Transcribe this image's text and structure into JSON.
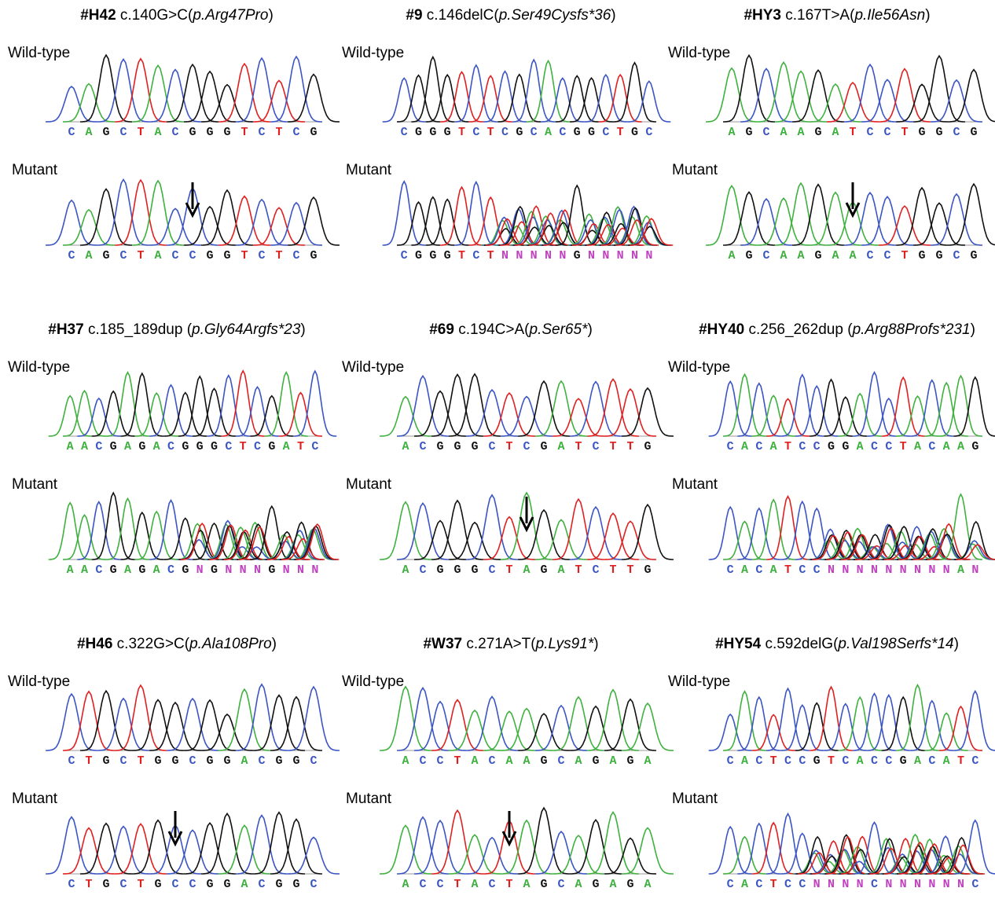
{
  "panels": [
    {
      "id": "#H42",
      "change": " c.140G>C(",
      "protein": "p.Arg47Pro",
      "close": ")",
      "wildtype": {
        "label": "Wild-type",
        "seq": [
          "C",
          "A",
          "G",
          "C",
          "T",
          "A",
          "C",
          "G",
          "G",
          "G",
          "T",
          "C",
          "T",
          "C",
          "G"
        ]
      },
      "mutant": {
        "label": "Mutant",
        "seq": [
          "C",
          "A",
          "G",
          "C",
          "T",
          "A",
          "C",
          "C",
          "G",
          "G",
          "T",
          "C",
          "T",
          "C",
          "G"
        ]
      }
    },
    {
      "id": "#9",
      "change": " c.146delC(",
      "protein": "p.Ser49Cysfs*36",
      "close": ")",
      "wildtype": {
        "label": "Wild-type",
        "seq": [
          "C",
          "G",
          "G",
          "G",
          "T",
          "C",
          "T",
          "C",
          "G",
          "C",
          "A",
          "C",
          "G",
          "G",
          "C",
          "T",
          "G",
          "C"
        ]
      },
      "mutant": {
        "label": "Mutant",
        "seq": [
          "C",
          "G",
          "G",
          "G",
          "T",
          "C",
          "T",
          "N",
          "N",
          "N",
          "N",
          "N",
          "G",
          "N",
          "N",
          "N",
          "N",
          "N"
        ]
      }
    },
    {
      "id": "#HY3",
      "change": " c.167T>A(",
      "protein": "p.Ile56Asn",
      "close": ")",
      "wildtype": {
        "label": "Wild-type",
        "seq": [
          "A",
          "G",
          "C",
          "A",
          "A",
          "G",
          "A",
          "T",
          "C",
          "C",
          "T",
          "G",
          "G",
          "C",
          "G"
        ]
      },
      "mutant": {
        "label": "Mutant",
        "seq": [
          "A",
          "G",
          "C",
          "A",
          "A",
          "G",
          "A",
          "A",
          "C",
          "C",
          "T",
          "G",
          "G",
          "C",
          "G"
        ]
      }
    },
    {
      "id": "#H37",
      "change": " c.185_189dup (",
      "protein": "p.Gly64Argfs*23",
      "close": ")",
      "wildtype": {
        "label": "Wild-type",
        "seq": [
          "A",
          "A",
          "C",
          "G",
          "A",
          "G",
          "A",
          "C",
          "G",
          "G",
          "G",
          "C",
          "T",
          "C",
          "G",
          "A",
          "T",
          "C"
        ]
      },
      "mutant": {
        "label": "Mutant",
        "seq": [
          "A",
          "A",
          "C",
          "G",
          "A",
          "G",
          "A",
          "C",
          "G",
          "N",
          "G",
          "N",
          "N",
          "N",
          "G",
          "N",
          "N",
          "N"
        ]
      }
    },
    {
      "id": "#69",
      "change": " c.194C>A(",
      "protein": "p.Ser65*",
      "close": ")",
      "wildtype": {
        "label": "Wild-type",
        "seq": [
          "A",
          "C",
          "G",
          "G",
          "G",
          "C",
          "T",
          "C",
          "G",
          "A",
          "T",
          "C",
          "T",
          "T",
          "G"
        ]
      },
      "mutant": {
        "label": "Mutant",
        "seq": [
          "A",
          "C",
          "G",
          "G",
          "G",
          "C",
          "T",
          "A",
          "G",
          "A",
          "T",
          "C",
          "T",
          "T",
          "G"
        ]
      }
    },
    {
      "id": "#HY40",
      "change": " c.256_262dup (",
      "protein": "p.Arg88Profs*231",
      "close": ")",
      "wildtype": {
        "label": "Wild-type",
        "seq": [
          "C",
          "A",
          "C",
          "A",
          "T",
          "C",
          "C",
          "G",
          "G",
          "A",
          "C",
          "C",
          "T",
          "A",
          "C",
          "A",
          "A",
          "G"
        ]
      },
      "mutant": {
        "label": "Mutant",
        "seq": [
          "C",
          "A",
          "C",
          "A",
          "T",
          "C",
          "C",
          "N",
          "N",
          "N",
          "N",
          "N",
          "N",
          "N",
          "N",
          "N",
          "A",
          "N"
        ]
      }
    },
    {
      "id": "#H46",
      "change": " c.322G>C(",
      "protein": "p.Ala108Pro",
      "close": ")",
      "wildtype": {
        "label": "Wild-type",
        "seq": [
          "C",
          "T",
          "G",
          "C",
          "T",
          "G",
          "G",
          "C",
          "G",
          "G",
          "A",
          "C",
          "G",
          "G",
          "C"
        ]
      },
      "mutant": {
        "label": "Mutant",
        "seq": [
          "C",
          "T",
          "G",
          "C",
          "T",
          "G",
          "C",
          "C",
          "G",
          "G",
          "A",
          "C",
          "G",
          "G",
          "C"
        ]
      }
    },
    {
      "id": "#W37",
      "change": " c.271A>T(",
      "protein": "p.Lys91*",
      "close": ")",
      "wildtype": {
        "label": "Wild-type",
        "seq": [
          "A",
          "C",
          "C",
          "T",
          "A",
          "C",
          "A",
          "A",
          "G",
          "C",
          "A",
          "G",
          "A",
          "G",
          "A"
        ]
      },
      "mutant": {
        "label": "Mutant",
        "seq": [
          "A",
          "C",
          "C",
          "T",
          "A",
          "C",
          "T",
          "A",
          "G",
          "C",
          "A",
          "G",
          "A",
          "G",
          "A"
        ]
      }
    },
    {
      "id": "#HY54",
      "change": " c.592delG(",
      "protein": "p.Val198Serfs*14",
      "close": ")",
      "wildtype": {
        "label": "Wild-type",
        "seq": [
          "C",
          "A",
          "C",
          "T",
          "C",
          "C",
          "G",
          "T",
          "C",
          "A",
          "C",
          "C",
          "G",
          "A",
          "C",
          "A",
          "T",
          "C"
        ]
      },
      "mutant": {
        "label": "Mutant",
        "seq": [
          "C",
          "A",
          "C",
          "T",
          "C",
          "C",
          "N",
          "N",
          "N",
          "N",
          "C",
          "N",
          "N",
          "N",
          "N",
          "N",
          "N",
          "C"
        ]
      }
    }
  ]
}
